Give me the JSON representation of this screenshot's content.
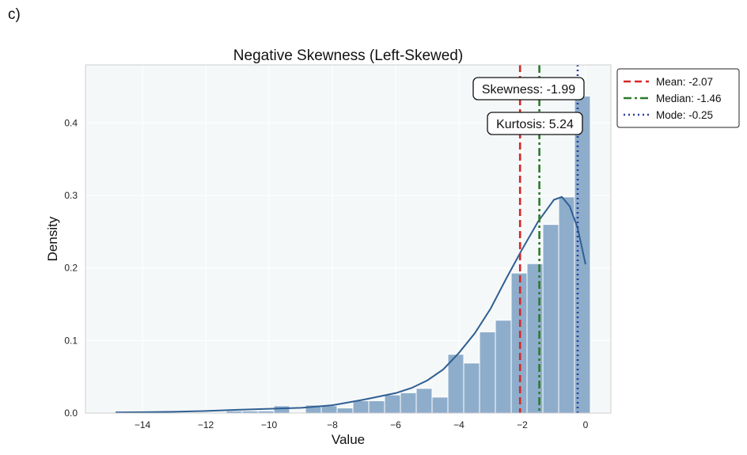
{
  "panel_label": "c)",
  "colors": {
    "plot_bg": "#f5f8f8",
    "bar": "#8eadcb",
    "kde": "#2f5f93",
    "mean": "#d62728",
    "median": "#2c7a2c",
    "mode": "#2b3d9b"
  },
  "chart_data": {
    "type": "bar",
    "title": "Negative Skewness (Left-Skewed)",
    "xlabel": "Value",
    "ylabel": "Density",
    "xlim": [
      -15.8,
      0.8
    ],
    "ylim": [
      0,
      0.48
    ],
    "grid": true,
    "legend_position": "outside-top-right",
    "x_ticks": [
      {
        "value": -14,
        "label": "−14"
      },
      {
        "value": -12,
        "label": "−12"
      },
      {
        "value": -10,
        "label": "−10"
      },
      {
        "value": -8,
        "label": "−8"
      },
      {
        "value": -6,
        "label": "−6"
      },
      {
        "value": -4,
        "label": "−4"
      },
      {
        "value": -2,
        "label": "−2"
      },
      {
        "value": 0,
        "label": "0"
      }
    ],
    "y_ticks": [
      {
        "value": 0.0,
        "label": "0.0"
      },
      {
        "value": 0.1,
        "label": "0.1"
      },
      {
        "value": 0.2,
        "label": "0.2"
      },
      {
        "value": 0.3,
        "label": "0.3"
      },
      {
        "value": 0.4,
        "label": "0.4"
      }
    ],
    "bin_width": 0.5,
    "bins": [
      {
        "x0": -14.85,
        "density": 0.0
      },
      {
        "x0": -14.35,
        "density": 0.0
      },
      {
        "x0": -13.85,
        "density": 0.0
      },
      {
        "x0": -13.35,
        "density": 0.0
      },
      {
        "x0": -12.85,
        "density": 0.0
      },
      {
        "x0": -12.35,
        "density": 0.0
      },
      {
        "x0": -11.85,
        "density": 0.0
      },
      {
        "x0": -11.35,
        "density": 0.003
      },
      {
        "x0": -10.85,
        "density": 0.003
      },
      {
        "x0": -10.35,
        "density": 0.003
      },
      {
        "x0": -9.85,
        "density": 0.01
      },
      {
        "x0": -9.35,
        "density": 0.0
      },
      {
        "x0": -8.85,
        "density": 0.011
      },
      {
        "x0": -8.35,
        "density": 0.01
      },
      {
        "x0": -7.85,
        "density": 0.007
      },
      {
        "x0": -7.35,
        "density": 0.017
      },
      {
        "x0": -6.85,
        "density": 0.017
      },
      {
        "x0": -6.35,
        "density": 0.025
      },
      {
        "x0": -5.85,
        "density": 0.028
      },
      {
        "x0": -5.35,
        "density": 0.034
      },
      {
        "x0": -4.85,
        "density": 0.022
      },
      {
        "x0": -4.35,
        "density": 0.081
      },
      {
        "x0": -3.85,
        "density": 0.069
      },
      {
        "x0": -3.35,
        "density": 0.112
      },
      {
        "x0": -2.85,
        "density": 0.128
      },
      {
        "x0": -2.35,
        "density": 0.193
      },
      {
        "x0": -1.85,
        "density": 0.206
      },
      {
        "x0": -1.35,
        "density": 0.26
      },
      {
        "x0": -0.85,
        "density": 0.298
      },
      {
        "x0": -0.35,
        "density": 0.437
      }
    ],
    "kde": {
      "x": [
        -14.85,
        -14.0,
        -13.0,
        -12.0,
        -11.0,
        -10.0,
        -9.0,
        -8.0,
        -7.0,
        -6.0,
        -5.5,
        -5.0,
        -4.5,
        -4.0,
        -3.5,
        -3.0,
        -2.5,
        -2.0,
        -1.5,
        -1.0,
        -0.75,
        -0.5,
        -0.25,
        0.0
      ],
      "y": [
        0.001,
        0.0012,
        0.0018,
        0.0028,
        0.0045,
        0.0058,
        0.0072,
        0.0108,
        0.0185,
        0.0275,
        0.0345,
        0.045,
        0.06,
        0.083,
        0.11,
        0.144,
        0.186,
        0.226,
        0.264,
        0.294,
        0.298,
        0.285,
        0.255,
        0.205
      ]
    },
    "reference_lines": [
      {
        "name": "Mean: -2.07",
        "x": -2.07,
        "style": "dashed",
        "color_key": "mean"
      },
      {
        "name": "Median: -1.46",
        "x": -1.46,
        "style": "dashdot",
        "color_key": "median"
      },
      {
        "name": "Mode: -0.25",
        "x": -0.25,
        "style": "dotted",
        "color_key": "mode"
      }
    ],
    "annotations": [
      {
        "text": "Skewness: -1.99"
      },
      {
        "text": "Kurtosis: 5.24"
      }
    ]
  }
}
